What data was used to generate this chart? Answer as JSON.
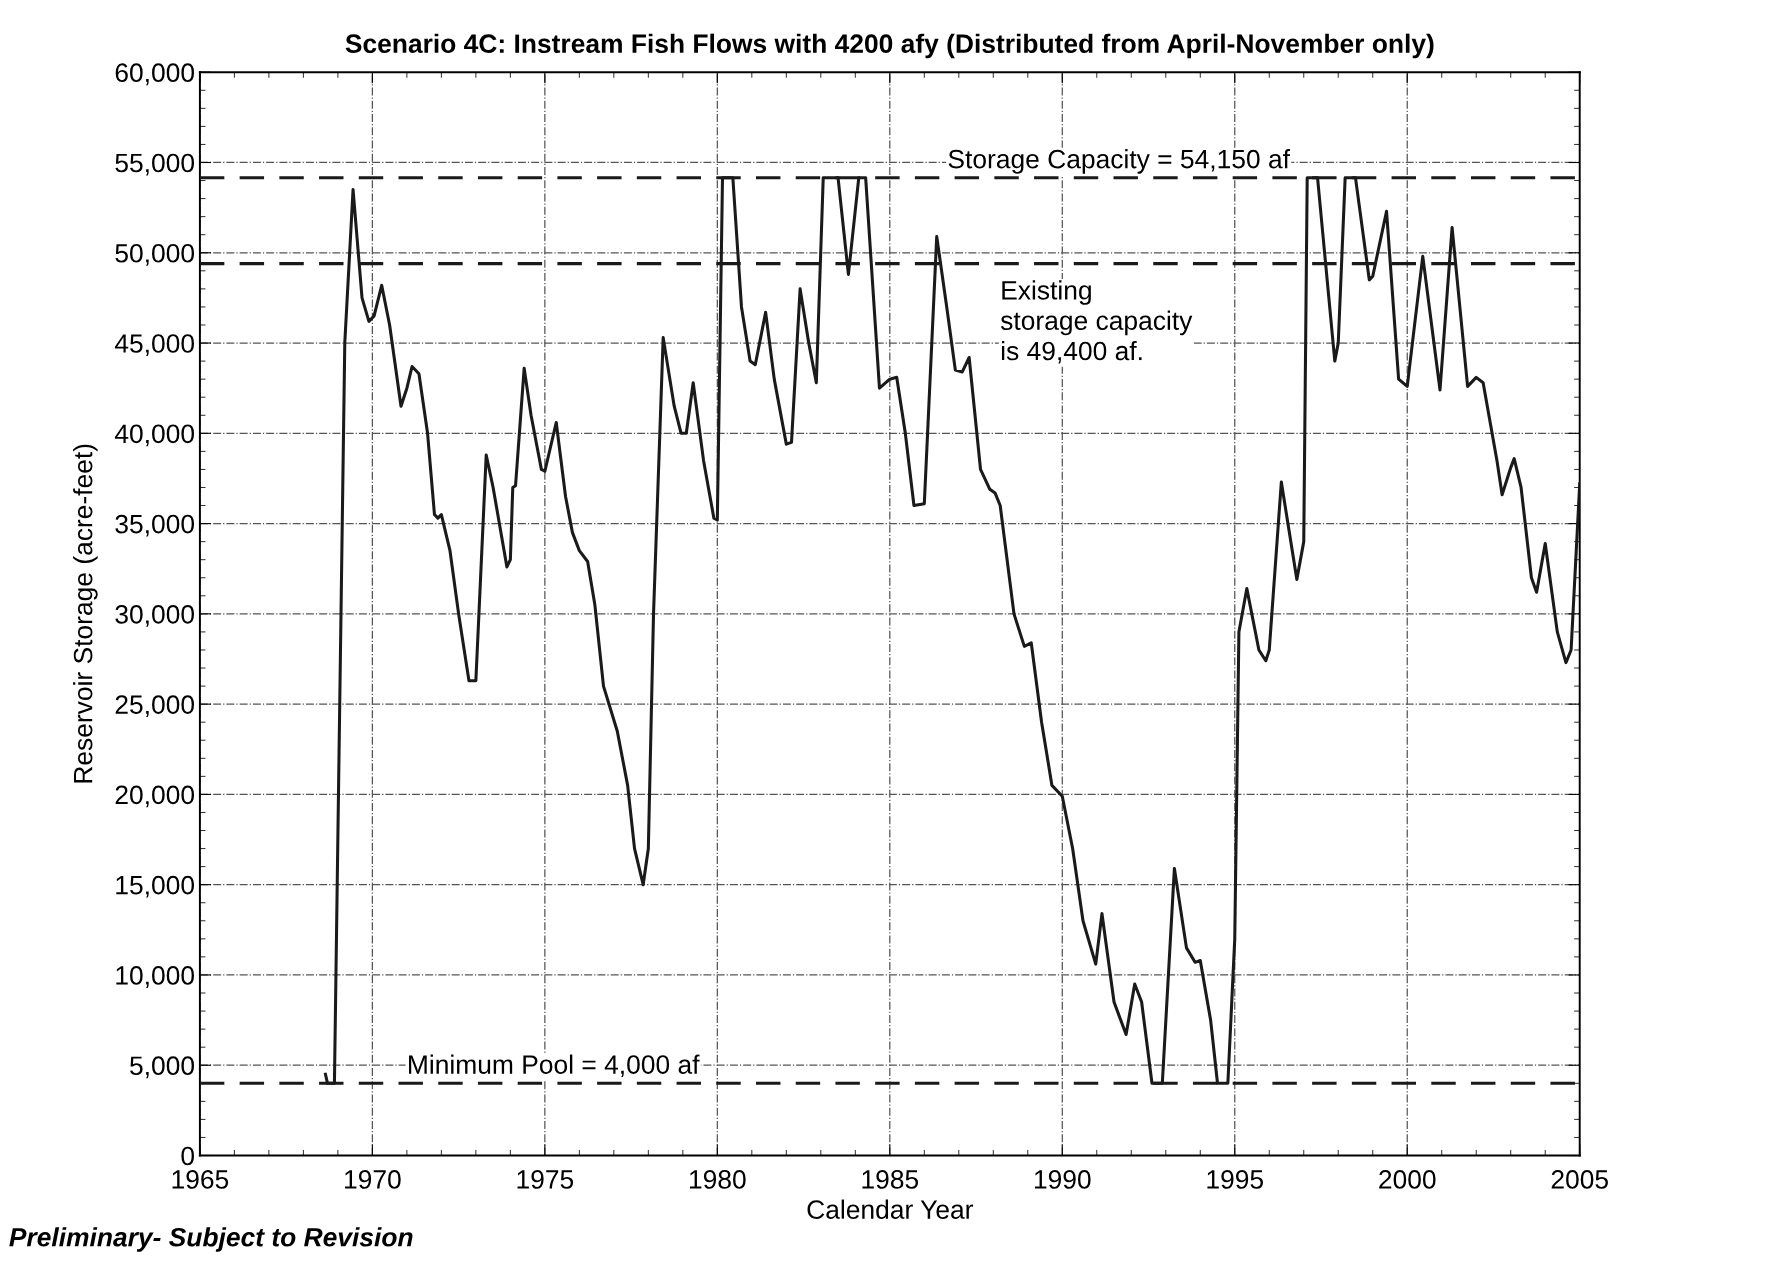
{
  "chart_data": {
    "type": "line",
    "title": "Scenario 4C: Instream Fish Flows with 4200 afy (Distributed from April-November only)",
    "xlabel": "Calendar Year",
    "ylabel": "Reservoir Storage (acre-feet)",
    "series": [
      {
        "color": "#1a1a1a",
        "x": [
          1968.64,
          1968.7,
          1968.9,
          1969.2,
          1969.44,
          1969.7,
          1969.9,
          1970.05,
          1970.27,
          1970.5,
          1970.83,
          1971.0,
          1971.15,
          1971.35,
          1971.6,
          1971.8,
          1971.9,
          1972.0,
          1972.25,
          1972.5,
          1972.8,
          1973.0,
          1973.3,
          1973.5,
          1973.9,
          1974.0,
          1974.07,
          1974.15,
          1974.4,
          1974.6,
          1974.9,
          1975.0,
          1975.33,
          1975.6,
          1975.8,
          1976.0,
          1976.24,
          1976.45,
          1976.7,
          1977.1,
          1977.4,
          1977.6,
          1977.85,
          1978.0,
          1978.15,
          1978.43,
          1978.75,
          1978.95,
          1979.1,
          1979.3,
          1979.6,
          1979.9,
          1980.0,
          1980.15,
          1980.45,
          1980.7,
          1980.95,
          1981.1,
          1981.4,
          1981.65,
          1982.0,
          1982.15,
          1982.4,
          1982.65,
          1982.87,
          1983.07,
          1983.5,
          1983.8,
          1984.1,
          1984.3,
          1984.7,
          1985.0,
          1985.2,
          1985.45,
          1985.7,
          1986.0,
          1986.36,
          1986.65,
          1986.9,
          1987.1,
          1987.3,
          1987.63,
          1987.9,
          1988.05,
          1988.2,
          1988.6,
          1988.9,
          1989.1,
          1989.4,
          1989.7,
          1990.0,
          1990.3,
          1990.6,
          1990.97,
          1991.15,
          1991.5,
          1991.85,
          1992.1,
          1992.3,
          1992.6,
          1992.9,
          1993.25,
          1993.6,
          1993.85,
          1994.0,
          1994.3,
          1994.5,
          1994.8,
          1995.0,
          1995.12,
          1995.35,
          1995.7,
          1995.9,
          1996.0,
          1996.35,
          1996.8,
          1997.0,
          1997.1,
          1997.4,
          1997.9,
          1998.0,
          1998.2,
          1998.5,
          1998.9,
          1999.0,
          1999.4,
          1999.75,
          2000.0,
          2000.45,
          2000.95,
          2001.3,
          2001.75,
          2002.0,
          2002.2,
          2002.6,
          2002.75,
          2003.0,
          2003.1,
          2003.3,
          2003.6,
          2003.75,
          2004.0,
          2004.35,
          2004.6,
          2004.75,
          2005.0
        ],
        "values": [
          4500,
          4000,
          4000,
          45000,
          53500,
          47500,
          46200,
          46500,
          48200,
          46000,
          41500,
          42500,
          43700,
          43300,
          40000,
          35500,
          35300,
          35500,
          33500,
          30000,
          26300,
          26300,
          38800,
          37000,
          32600,
          33000,
          37000,
          37100,
          43600,
          41000,
          38000,
          37900,
          40600,
          36500,
          34500,
          33500,
          32900,
          30500,
          26000,
          23500,
          20500,
          17000,
          15000,
          17000,
          30000,
          45300,
          41500,
          40000,
          40000,
          42800,
          38500,
          35300,
          35200,
          54150,
          54150,
          47000,
          44000,
          43800,
          46700,
          43000,
          39400,
          39500,
          48000,
          45000,
          42800,
          54150,
          54150,
          48800,
          54150,
          54150,
          42500,
          43000,
          43100,
          40000,
          36000,
          36100,
          50900,
          47000,
          43500,
          43400,
          44200,
          38000,
          36900,
          36700,
          36000,
          30000,
          28200,
          28400,
          24000,
          20500,
          19900,
          17000,
          13000,
          10600,
          13400,
          8500,
          6700,
          9500,
          8500,
          4000,
          4000,
          15900,
          11500,
          10700,
          10800,
          7500,
          4000,
          4000,
          12000,
          29000,
          31400,
          28000,
          27400,
          28000,
          37300,
          31900,
          34000,
          54150,
          54150,
          44000,
          45000,
          54150,
          54150,
          48500,
          48700,
          52300,
          43000,
          42600,
          49800,
          42400,
          51400,
          42600,
          43100,
          42800,
          38500,
          36600,
          38100,
          38600,
          37000,
          32000,
          31200,
          33900,
          29000,
          27300,
          28000,
          37200
        ]
      }
    ],
    "xlim": [
      1965,
      2005
    ],
    "xticks": [
      1965,
      1970,
      1975,
      1980,
      1985,
      1990,
      1995,
      2000,
      2005
    ],
    "ylim": [
      0,
      60000
    ],
    "yticks": [
      0,
      {
        "value": 5000,
        "label": "5,000"
      },
      {
        "value": 10000,
        "label": "10,000"
      },
      {
        "value": 15000,
        "label": "15,000"
      },
      {
        "value": 20000,
        "label": "20,000"
      },
      {
        "value": 25000,
        "label": "25,000"
      },
      {
        "value": 30000,
        "label": "30,000"
      },
      {
        "value": 35000,
        "label": "35,000"
      },
      {
        "value": 40000,
        "label": "40,000"
      },
      {
        "value": 45000,
        "label": "45,000"
      },
      {
        "value": 50000,
        "label": "50,000"
      },
      {
        "value": 55000,
        "label": "55,000"
      },
      {
        "value": 60000,
        "label": "60,000"
      }
    ],
    "grid": true,
    "line_style": "solid",
    "marker": "none",
    "ref_lines": [
      {
        "axis": "y",
        "value": 54150,
        "label": "Storage Capacity = 54,150 af",
        "line_style": "dashed",
        "color": "#1a1a1a"
      },
      {
        "axis": "y",
        "value": 49400,
        "label": "Existing\nstorage capacity\nis 49,400 af.",
        "line_style": "dashed",
        "color": "#1a1a1a"
      },
      {
        "axis": "y",
        "value": 4000,
        "label": "Minimum Pool = 4,000 af",
        "line_style": "dashed",
        "color": "#1a1a1a"
      }
    ],
    "annotations": [
      "Preliminary- Subject to Revision"
    ]
  }
}
